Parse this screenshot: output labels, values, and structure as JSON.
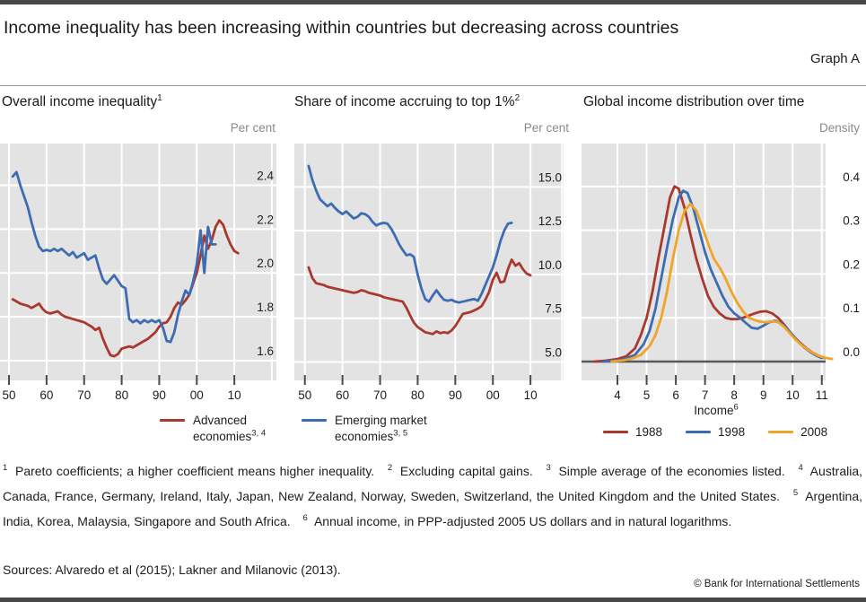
{
  "page": {
    "title": "Income inequality has been increasing within countries but decreasing across countries",
    "graph_label": "Graph A",
    "sources": "Sources: Alvaredo et al (2015); Lakner and Milanovic (2013).",
    "copyright": "© Bank for International Settlements"
  },
  "colors": {
    "advanced_red": "#a9382f",
    "emerging_blue": "#3e6cb2",
    "y2008_orange": "#f0a428",
    "plot_bg": "#e3e3e3",
    "grid": "#ffffff",
    "zero_line": "#58585a",
    "tick": "#4a4a4a"
  },
  "legends": {
    "panel12": [
      {
        "color_key": "advanced_red",
        "lines": [
          "Advanced",
          "economies"
        ],
        "sup": "3, 4"
      },
      {
        "color_key": "emerging_blue",
        "lines": [
          "Emerging market",
          "economies"
        ],
        "sup": "3, 5"
      }
    ],
    "panel3": [
      {
        "color_key": "advanced_red",
        "label": "1988"
      },
      {
        "color_key": "emerging_blue",
        "label": "1998"
      },
      {
        "color_key": "y2008_orange",
        "label": "2008"
      }
    ]
  },
  "footnotes": [
    {
      "sup": "1",
      "text": "Pareto coefficients; a higher coefficient means higher inequality."
    },
    {
      "sup": "2",
      "text": "Excluding capital gains."
    },
    {
      "sup": "3",
      "text": "Simple average of the economies listed."
    },
    {
      "sup": "4",
      "text": "Australia, Canada, France, Germany, Ireland, Italy, Japan, New Zealand, Norway, Sweden, Switzerland, the United Kingdom and the United States."
    },
    {
      "sup": "5",
      "text": "Argentina, India, Korea, Malaysia, Singapore and South Africa."
    },
    {
      "sup": "6",
      "text": "Annual income, in PPP-adjusted 2005 US dollars and in natural logarithms."
    }
  ],
  "chart_data": [
    {
      "type": "line",
      "title": "Overall income inequality",
      "title_sup": "1",
      "unit": "Per cent",
      "x_domain": [
        1947.6,
        2021.2
      ],
      "y_domain": [
        1.51,
        2.59
      ],
      "x_grid": [
        1950,
        1960,
        1970,
        1980,
        1990,
        2000,
        2010,
        2020
      ],
      "x_ticks": [
        {
          "v": 1950,
          "l": "50"
        },
        {
          "v": 1960,
          "l": "60"
        },
        {
          "v": 1970,
          "l": "70"
        },
        {
          "v": 1980,
          "l": "80"
        },
        {
          "v": 1990,
          "l": "90"
        },
        {
          "v": 2000,
          "l": "00"
        },
        {
          "v": 2010,
          "l": "10"
        }
      ],
      "y_ticks": [
        {
          "v": 1.6,
          "l": "1.6"
        },
        {
          "v": 1.8,
          "l": "1.8"
        },
        {
          "v": 2.0,
          "l": "2.0"
        },
        {
          "v": 2.2,
          "l": "2.2"
        },
        {
          "v": 2.4,
          "l": "2.4"
        }
      ],
      "series": [
        {
          "name": "Advanced economies",
          "color_key": "advanced_red",
          "x0": 1951,
          "y": [
            1.88,
            1.87,
            1.86,
            1.855,
            1.85,
            1.84,
            1.85,
            1.86,
            1.835,
            1.82,
            1.815,
            1.82,
            1.825,
            1.81,
            1.8,
            1.795,
            1.79,
            1.785,
            1.78,
            1.775,
            1.765,
            1.755,
            1.74,
            1.75,
            1.7,
            1.66,
            1.625,
            1.62,
            1.63,
            1.655,
            1.66,
            1.665,
            1.66,
            1.67,
            1.68,
            1.69,
            1.7,
            1.715,
            1.73,
            1.755,
            1.77,
            1.775,
            1.8,
            1.84,
            1.865,
            1.855,
            1.875,
            1.9,
            1.95,
            2.0,
            2.08,
            2.17,
            2.11,
            2.15,
            2.21,
            2.24,
            2.22,
            2.17,
            2.13,
            2.1,
            2.09
          ]
        },
        {
          "name": "Emerging market economies",
          "color_key": "emerging_blue",
          "x0": 1951,
          "y": [
            2.44,
            2.46,
            2.4,
            2.35,
            2.3,
            2.23,
            2.17,
            2.12,
            2.1,
            2.105,
            2.1,
            2.11,
            2.1,
            2.11,
            2.095,
            2.08,
            2.095,
            2.07,
            2.08,
            2.09,
            2.06,
            2.07,
            2.08,
            2.02,
            1.97,
            1.95,
            1.97,
            1.99,
            1.965,
            1.94,
            1.93,
            1.79,
            1.775,
            1.785,
            1.77,
            1.785,
            1.775,
            1.785,
            1.775,
            1.785,
            1.75,
            1.69,
            1.685,
            1.73,
            1.81,
            1.87,
            1.92,
            1.9,
            1.96,
            2.04,
            2.195,
            2.0,
            2.21,
            2.13,
            2.13
          ]
        }
      ]
    },
    {
      "type": "line",
      "title": "Share of income accruing to top 1%",
      "title_sup": "2",
      "unit": "Per cent",
      "x_domain": [
        1947.2,
        2018.8
      ],
      "y_domain": [
        3.95,
        17.48
      ],
      "x_grid": [
        1950,
        1960,
        1970,
        1980,
        1990,
        2000,
        2010,
        2018.4
      ],
      "x_ticks": [
        {
          "v": 1950,
          "l": "50"
        },
        {
          "v": 1960,
          "l": "60"
        },
        {
          "v": 1970,
          "l": "70"
        },
        {
          "v": 1980,
          "l": "80"
        },
        {
          "v": 1990,
          "l": "90"
        },
        {
          "v": 2000,
          "l": "00"
        },
        {
          "v": 2010,
          "l": "10"
        }
      ],
      "y_ticks": [
        {
          "v": 5.0,
          "l": "5.0"
        },
        {
          "v": 7.5,
          "l": "7.5"
        },
        {
          "v": 10.0,
          "l": "10.0"
        },
        {
          "v": 12.5,
          "l": "12.5"
        },
        {
          "v": 15.0,
          "l": "15.0"
        }
      ],
      "series": [
        {
          "name": "Advanced economies",
          "color_key": "advanced_red",
          "x0": 1951,
          "y": [
            10.4,
            9.8,
            9.5,
            9.45,
            9.4,
            9.3,
            9.25,
            9.2,
            9.15,
            9.1,
            9.05,
            9.0,
            8.95,
            9.0,
            9.1,
            9.05,
            8.95,
            8.9,
            8.85,
            8.8,
            8.7,
            8.65,
            8.6,
            8.55,
            8.5,
            8.45,
            8.1,
            7.65,
            7.25,
            7.0,
            6.85,
            6.7,
            6.65,
            6.6,
            6.75,
            6.65,
            6.7,
            6.65,
            6.8,
            7.05,
            7.4,
            7.75,
            7.8,
            7.85,
            7.95,
            8.05,
            8.2,
            8.55,
            9.0,
            9.7,
            10.1,
            9.55,
            9.6,
            10.3,
            10.85,
            10.5,
            10.65,
            10.3,
            10.05,
            9.95
          ]
        },
        {
          "name": "Emerging market economies",
          "color_key": "emerging_blue",
          "x0": 1951,
          "y": [
            16.2,
            15.4,
            14.8,
            14.3,
            14.1,
            13.9,
            14.05,
            13.8,
            13.6,
            13.45,
            13.6,
            13.4,
            13.2,
            13.3,
            13.5,
            13.45,
            13.3,
            13.0,
            12.8,
            12.9,
            12.95,
            12.9,
            12.6,
            12.2,
            11.75,
            11.4,
            11.1,
            11.15,
            11.0,
            10.0,
            9.2,
            8.6,
            8.45,
            8.8,
            9.1,
            8.8,
            8.55,
            8.5,
            8.55,
            8.45,
            8.4,
            8.45,
            8.5,
            8.55,
            8.6,
            8.5,
            8.9,
            9.4,
            9.9,
            10.4,
            11.1,
            11.9,
            12.5,
            12.9,
            12.95
          ]
        }
      ]
    },
    {
      "type": "line",
      "title": "Global income distribution over time",
      "unit": "Density",
      "xlabel": "Income",
      "xlabel_sup": "6",
      "zero_line": 0.0,
      "x_domain": [
        2.77,
        11.13
      ],
      "y_domain": [
        -0.043,
        0.498
      ],
      "x_grid": [
        4,
        5,
        6,
        7,
        8,
        9,
        10,
        11
      ],
      "x_ticks": [
        {
          "v": 4,
          "l": "4"
        },
        {
          "v": 5,
          "l": "5"
        },
        {
          "v": 6,
          "l": "6"
        },
        {
          "v": 7,
          "l": "7"
        },
        {
          "v": 8,
          "l": "8"
        },
        {
          "v": 9,
          "l": "9"
        },
        {
          "v": 10,
          "l": "10"
        },
        {
          "v": 11,
          "l": "11"
        }
      ],
      "y_ticks": [
        {
          "v": 0.0,
          "l": "0.0"
        },
        {
          "v": 0.1,
          "l": "0.1"
        },
        {
          "v": 0.2,
          "l": "0.2"
        },
        {
          "v": 0.3,
          "l": "0.3"
        },
        {
          "v": 0.4,
          "l": "0.4"
        }
      ],
      "series": [
        {
          "name": "1988",
          "color_key": "advanced_red",
          "x": [
            3.2,
            3.6,
            4.0,
            4.3,
            4.6,
            4.8,
            5.0,
            5.2,
            5.4,
            5.6,
            5.8,
            5.95,
            6.1,
            6.3,
            6.5,
            6.7,
            6.9,
            7.1,
            7.3,
            7.5,
            7.7,
            7.9,
            8.1,
            8.3,
            8.5,
            8.7,
            8.9,
            9.1,
            9.3,
            9.5,
            9.7,
            9.9,
            10.1,
            10.3,
            10.5,
            10.7,
            10.9,
            11.1
          ],
          "y": [
            0,
            0.002,
            0.006,
            0.012,
            0.03,
            0.06,
            0.1,
            0.16,
            0.235,
            0.305,
            0.375,
            0.4,
            0.395,
            0.35,
            0.29,
            0.235,
            0.19,
            0.15,
            0.125,
            0.11,
            0.1,
            0.097,
            0.097,
            0.1,
            0.105,
            0.11,
            0.114,
            0.115,
            0.11,
            0.1,
            0.085,
            0.068,
            0.053,
            0.04,
            0.029,
            0.02,
            0.013,
            0.008
          ]
        },
        {
          "name": "1998",
          "color_key": "emerging_blue",
          "x": [
            3.5,
            3.9,
            4.2,
            4.6,
            4.9,
            5.1,
            5.3,
            5.5,
            5.7,
            5.9,
            6.1,
            6.25,
            6.4,
            6.6,
            6.8,
            7.0,
            7.2,
            7.4,
            7.6,
            7.8,
            8.0,
            8.2,
            8.4,
            8.6,
            8.8,
            9.0,
            9.2,
            9.4,
            9.6,
            9.8,
            10.0,
            10.2,
            10.4,
            10.6,
            10.8,
            11.0
          ],
          "y": [
            0,
            0.002,
            0.005,
            0.015,
            0.04,
            0.07,
            0.12,
            0.19,
            0.26,
            0.325,
            0.375,
            0.39,
            0.385,
            0.35,
            0.3,
            0.25,
            0.21,
            0.18,
            0.15,
            0.125,
            0.11,
            0.1,
            0.088,
            0.077,
            0.075,
            0.082,
            0.09,
            0.093,
            0.088,
            0.076,
            0.06,
            0.045,
            0.032,
            0.022,
            0.014,
            0.008
          ]
        },
        {
          "name": "2008",
          "color_key": "y2008_orange",
          "x": [
            3.8,
            4.2,
            4.5,
            4.8,
            5.1,
            5.3,
            5.5,
            5.7,
            5.9,
            6.1,
            6.3,
            6.5,
            6.7,
            6.9,
            7.1,
            7.3,
            7.5,
            7.7,
            7.9,
            8.1,
            8.3,
            8.5,
            8.7,
            8.9,
            9.1,
            9.3,
            9.5,
            9.7,
            9.9,
            10.1,
            10.3,
            10.5,
            10.7,
            10.9,
            11.1,
            11.35
          ],
          "y": [
            0,
            0.003,
            0.007,
            0.015,
            0.035,
            0.06,
            0.1,
            0.16,
            0.235,
            0.3,
            0.345,
            0.36,
            0.345,
            0.31,
            0.27,
            0.235,
            0.215,
            0.19,
            0.16,
            0.135,
            0.115,
            0.1,
            0.095,
            0.091,
            0.09,
            0.092,
            0.09,
            0.08,
            0.065,
            0.05,
            0.038,
            0.028,
            0.02,
            0.013,
            0.009,
            0.006
          ]
        }
      ]
    }
  ]
}
